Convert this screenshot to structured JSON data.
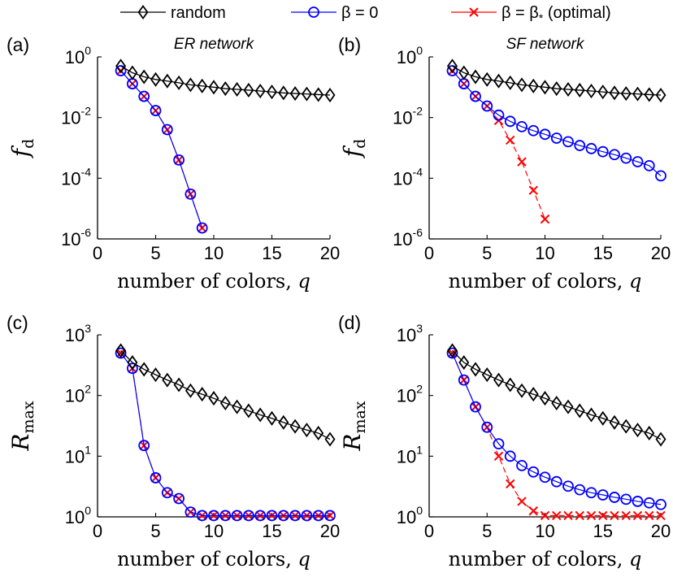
{
  "legend": {
    "entries": [
      {
        "series": "random",
        "label": "random"
      },
      {
        "series": "beta0",
        "label": "β = 0"
      },
      {
        "series": "betaopt",
        "label_prefix": "β = β",
        "label_sub": "*",
        "label_suffix": " (optimal)"
      }
    ]
  },
  "colors": {
    "random": "#000000",
    "beta0": "#0000ff",
    "betaopt": "#ff0000"
  },
  "markers": {
    "random": "diamond",
    "beta0": "circle",
    "betaopt": "cross"
  },
  "chart_data": [
    {
      "id": "a",
      "panel_label": "(a)",
      "title": "ER network",
      "type": "line",
      "xlabel_text": "number of colors, ",
      "xlabel_var": "q",
      "ylabel_main": "f",
      "ylabel_sub": "d",
      "xlim": [
        0,
        20
      ],
      "ylim": [
        1e-06,
        1
      ],
      "yscale": "log",
      "xticks": [
        0,
        5,
        10,
        15,
        20
      ],
      "yticks_exp": [
        "0",
        "-2",
        "-4",
        "-6"
      ],
      "ytick_base": "10",
      "series": [
        {
          "key": "random",
          "x": [
            2,
            3,
            4,
            5,
            6,
            7,
            8,
            9,
            10,
            11,
            12,
            13,
            14,
            15,
            16,
            17,
            18,
            19,
            20
          ],
          "y": [
            0.5,
            0.3,
            0.22,
            0.18,
            0.16,
            0.14,
            0.12,
            0.11,
            0.1,
            0.09,
            0.085,
            0.08,
            0.075,
            0.07,
            0.065,
            0.062,
            0.06,
            0.057,
            0.055
          ]
        },
        {
          "key": "beta0",
          "x": [
            2,
            3,
            4,
            5,
            6,
            7,
            8,
            9
          ],
          "y": [
            0.35,
            0.13,
            0.05,
            0.017,
            0.004,
            0.0004,
            3e-05,
            2.3e-06
          ]
        },
        {
          "key": "betaopt",
          "x": [
            2,
            3,
            4,
            5,
            6,
            7,
            8,
            9
          ],
          "y": [
            0.35,
            0.13,
            0.05,
            0.017,
            0.004,
            0.0004,
            3e-05,
            2.3e-06
          ]
        }
      ]
    },
    {
      "id": "b",
      "panel_label": "(b)",
      "title": "SF network",
      "type": "line",
      "xlabel_text": "number of colors, ",
      "xlabel_var": "q",
      "ylabel_main": "f",
      "ylabel_sub": "d",
      "xlim": [
        0,
        20
      ],
      "ylim": [
        1e-06,
        1
      ],
      "yscale": "log",
      "xticks": [
        0,
        5,
        10,
        15,
        20
      ],
      "yticks_exp": [
        "0",
        "-2",
        "-4",
        "-6"
      ],
      "ytick_base": "10",
      "series": [
        {
          "key": "random",
          "x": [
            2,
            3,
            4,
            5,
            6,
            7,
            8,
            9,
            10,
            11,
            12,
            13,
            14,
            15,
            16,
            17,
            18,
            19,
            20
          ],
          "y": [
            0.5,
            0.3,
            0.22,
            0.18,
            0.16,
            0.14,
            0.12,
            0.11,
            0.1,
            0.09,
            0.085,
            0.08,
            0.075,
            0.07,
            0.065,
            0.062,
            0.06,
            0.057,
            0.055
          ]
        },
        {
          "key": "beta0",
          "x": [
            2,
            3,
            4,
            5,
            6,
            7,
            8,
            9,
            10,
            11,
            12,
            13,
            14,
            15,
            16,
            17,
            18,
            19,
            20
          ],
          "y": [
            0.35,
            0.13,
            0.05,
            0.024,
            0.012,
            0.0075,
            0.005,
            0.0037,
            0.0028,
            0.0021,
            0.0016,
            0.0012,
            0.00095,
            0.00075,
            0.0006,
            0.00046,
            0.00035,
            0.00026,
            0.00012
          ]
        },
        {
          "key": "betaopt",
          "x": [
            2,
            3,
            4,
            5,
            6,
            7,
            8,
            9,
            10
          ],
          "y": [
            0.35,
            0.13,
            0.05,
            0.024,
            0.008,
            0.0018,
            0.00035,
            4e-05,
            4.5e-06
          ]
        }
      ]
    },
    {
      "id": "c",
      "panel_label": "(c)",
      "title": "",
      "type": "line",
      "xlabel_text": "number of colors, ",
      "xlabel_var": "q",
      "ylabel_main": "R",
      "ylabel_sub": "max",
      "xlim": [
        0,
        20
      ],
      "ylim": [
        1,
        1000
      ],
      "yscale": "log",
      "xticks": [
        0,
        5,
        10,
        15,
        20
      ],
      "yticks_exp": [
        "3",
        "2",
        "1",
        "0"
      ],
      "ytick_base": "10",
      "series": [
        {
          "key": "random",
          "x": [
            2,
            3,
            4,
            5,
            6,
            7,
            8,
            9,
            10,
            11,
            12,
            13,
            14,
            15,
            16,
            17,
            18,
            19,
            20
          ],
          "y": [
            550,
            350,
            270,
            220,
            180,
            150,
            120,
            105,
            90,
            75,
            65,
            56,
            48,
            42,
            36,
            31,
            27,
            24,
            19
          ]
        },
        {
          "key": "beta0",
          "x": [
            2,
            3,
            4,
            5,
            6,
            7,
            8,
            9,
            10,
            11,
            12,
            13,
            14,
            15,
            16,
            17,
            18,
            19,
            20
          ],
          "y": [
            500,
            280,
            15,
            4.4,
            2.5,
            2,
            1.2,
            1.05,
            1.05,
            1.05,
            1.05,
            1.05,
            1.05,
            1.05,
            1.05,
            1.05,
            1.05,
            1.05,
            1.05
          ]
        },
        {
          "key": "betaopt",
          "x": [
            2,
            3,
            4,
            5,
            6,
            7,
            8,
            9,
            10,
            11,
            12,
            13,
            14,
            15,
            16,
            17,
            18,
            19,
            20
          ],
          "y": [
            500,
            280,
            15,
            4.4,
            2.5,
            2,
            1.2,
            1.05,
            1.05,
            1.05,
            1.05,
            1.05,
            1.05,
            1.05,
            1.05,
            1.05,
            1.05,
            1.05,
            1.05
          ]
        }
      ]
    },
    {
      "id": "d",
      "panel_label": "(d)",
      "title": "",
      "type": "line",
      "xlabel_text": "number of colors, ",
      "xlabel_var": "q",
      "ylabel_main": "R",
      "ylabel_sub": "max",
      "xlim": [
        0,
        20
      ],
      "ylim": [
        1,
        1000
      ],
      "yscale": "log",
      "xticks": [
        0,
        5,
        10,
        15,
        20
      ],
      "yticks_exp": [
        "3",
        "2",
        "1",
        "0"
      ],
      "ytick_base": "10",
      "series": [
        {
          "key": "random",
          "x": [
            2,
            3,
            4,
            5,
            6,
            7,
            8,
            9,
            10,
            11,
            12,
            13,
            14,
            15,
            16,
            17,
            18,
            19,
            20
          ],
          "y": [
            550,
            350,
            270,
            220,
            180,
            150,
            120,
            105,
            90,
            75,
            65,
            56,
            48,
            42,
            36,
            31,
            27,
            24,
            19
          ]
        },
        {
          "key": "beta0",
          "x": [
            2,
            3,
            4,
            5,
            6,
            7,
            8,
            9,
            10,
            11,
            12,
            13,
            14,
            15,
            16,
            17,
            18,
            19,
            20
          ],
          "y": [
            500,
            180,
            65,
            30,
            16,
            10,
            7,
            5.5,
            4.5,
            3.8,
            3.2,
            2.8,
            2.5,
            2.3,
            2.1,
            1.95,
            1.8,
            1.7,
            1.6
          ]
        },
        {
          "key": "betaopt",
          "x": [
            2,
            3,
            4,
            5,
            6,
            7,
            8,
            9,
            10,
            11,
            12,
            13,
            14,
            15,
            16,
            17,
            18,
            19,
            20
          ],
          "y": [
            500,
            180,
            65,
            30,
            10,
            3.5,
            1.8,
            1.25,
            1.05,
            1.05,
            1.05,
            1.05,
            1.05,
            1.05,
            1.05,
            1.05,
            1.05,
            1.05,
            1.05
          ]
        }
      ]
    }
  ]
}
